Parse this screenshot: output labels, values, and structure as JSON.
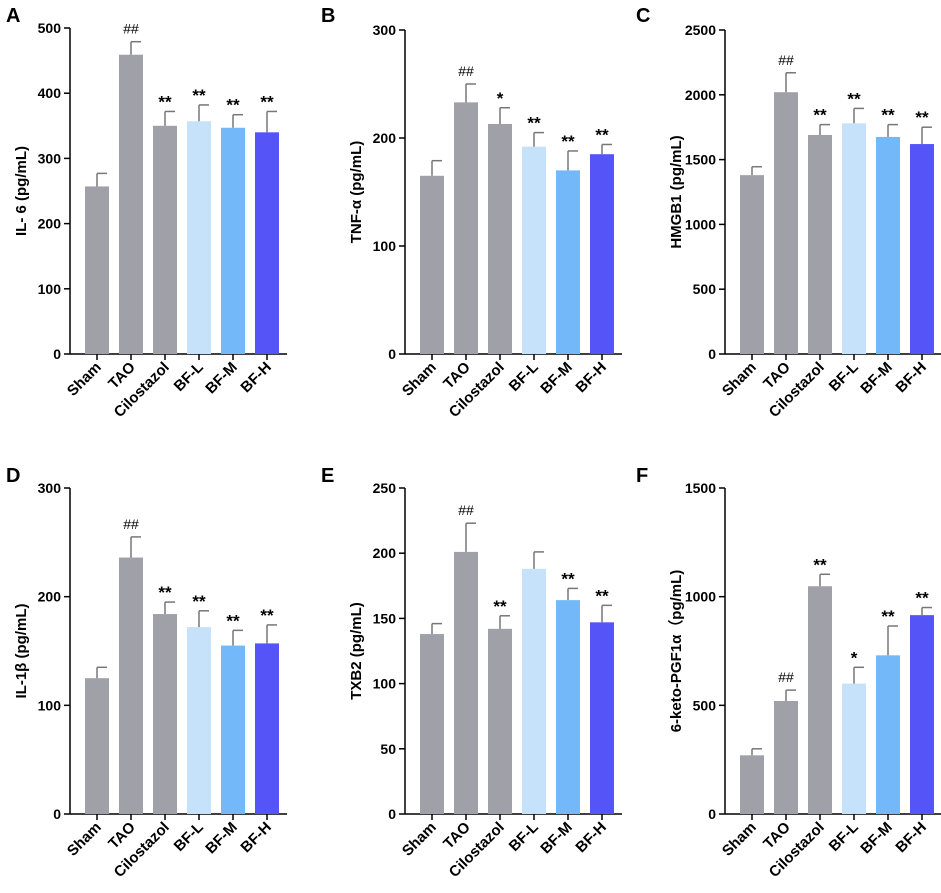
{
  "figure": {
    "title": ""
  },
  "colors": {
    "gray": "#a0a0a8",
    "light_blue": "#c6e2fb",
    "mid_blue": "#73b8f8",
    "dark_blue": "#5555f7",
    "axis": "#000000"
  },
  "chart_data": [
    {
      "panel": "A",
      "type": "bar",
      "ylabel": "IL- 6 (pg/mL)",
      "ylim": [
        0,
        500
      ],
      "yticks": [
        0,
        100,
        200,
        300,
        400,
        500
      ],
      "categories": [
        "Sham",
        "TAO",
        "Cilostazol",
        "BF-L",
        "BF-M",
        "BF-H"
      ],
      "values": [
        257,
        459,
        350,
        357,
        347,
        340
      ],
      "errors": [
        20,
        20,
        22,
        25,
        20,
        32
      ],
      "significance": [
        "",
        "##",
        "**",
        "**",
        "**",
        "**"
      ]
    },
    {
      "panel": "B",
      "type": "bar",
      "ylabel": "TNF-α (pg/mL)",
      "ylim": [
        0,
        300
      ],
      "yticks": [
        0,
        100,
        200,
        300
      ],
      "categories": [
        "Sham",
        "TAO",
        "Cilostazol",
        "BF-L",
        "BF-M",
        "BF-H"
      ],
      "values": [
        165,
        233,
        213,
        192,
        170,
        185
      ],
      "errors": [
        14,
        17,
        15,
        13,
        18,
        9
      ],
      "significance": [
        "",
        "##",
        "*",
        "**",
        "**",
        "**"
      ]
    },
    {
      "panel": "C",
      "type": "bar",
      "ylabel": "HMGB1 (pg/mL)",
      "ylim": [
        0,
        2500
      ],
      "yticks": [
        0,
        500,
        1000,
        1500,
        2000,
        2500
      ],
      "categories": [
        "Sham",
        "TAO",
        "Cilostazol",
        "BF-L",
        "BF-M",
        "BF-H"
      ],
      "values": [
        1380,
        2020,
        1690,
        1780,
        1675,
        1620
      ],
      "errors": [
        65,
        150,
        80,
        115,
        95,
        130
      ],
      "significance": [
        "",
        "##",
        "**",
        "**",
        "**",
        "**"
      ]
    },
    {
      "panel": "D",
      "type": "bar",
      "ylabel": "IL-1β (pg/mL)",
      "ylim": [
        0,
        300
      ],
      "yticks": [
        0,
        100,
        200,
        300
      ],
      "categories": [
        "Sham",
        "TAO",
        "Cilostazol",
        "BF-L",
        "BF-M",
        "BF-H"
      ],
      "values": [
        125,
        236,
        184,
        172,
        155,
        157
      ],
      "errors": [
        10,
        19,
        11,
        15,
        14,
        17
      ],
      "significance": [
        "",
        "##",
        "**",
        "**",
        "**",
        "**"
      ]
    },
    {
      "panel": "E",
      "type": "bar",
      "ylabel": "TXB2 (pg/mL)",
      "ylim": [
        0,
        250
      ],
      "yticks": [
        0,
        50,
        100,
        150,
        200,
        250
      ],
      "categories": [
        "Sham",
        "TAO",
        "Cilostazol",
        "BF-L",
        "BF-M",
        "BF-H"
      ],
      "values": [
        138,
        201,
        142,
        188,
        164,
        147
      ],
      "errors": [
        8,
        22,
        10,
        13,
        9,
        13
      ],
      "significance": [
        "",
        "##",
        "**",
        "",
        "**",
        "**"
      ]
    },
    {
      "panel": "F",
      "type": "bar",
      "ylabel": "6-keto-PGF1α（pg/mL)",
      "ylim": [
        0,
        1500
      ],
      "yticks": [
        0,
        500,
        1000,
        1500
      ],
      "categories": [
        "Sham",
        "TAO",
        "Cilostazol",
        "BF-L",
        "BF-M",
        "BF-H"
      ],
      "values": [
        270,
        520,
        1048,
        600,
        730,
        915
      ],
      "errors": [
        30,
        50,
        55,
        75,
        135,
        35
      ],
      "significance": [
        "",
        "##",
        "**",
        "*",
        "**",
        "**"
      ]
    }
  ]
}
